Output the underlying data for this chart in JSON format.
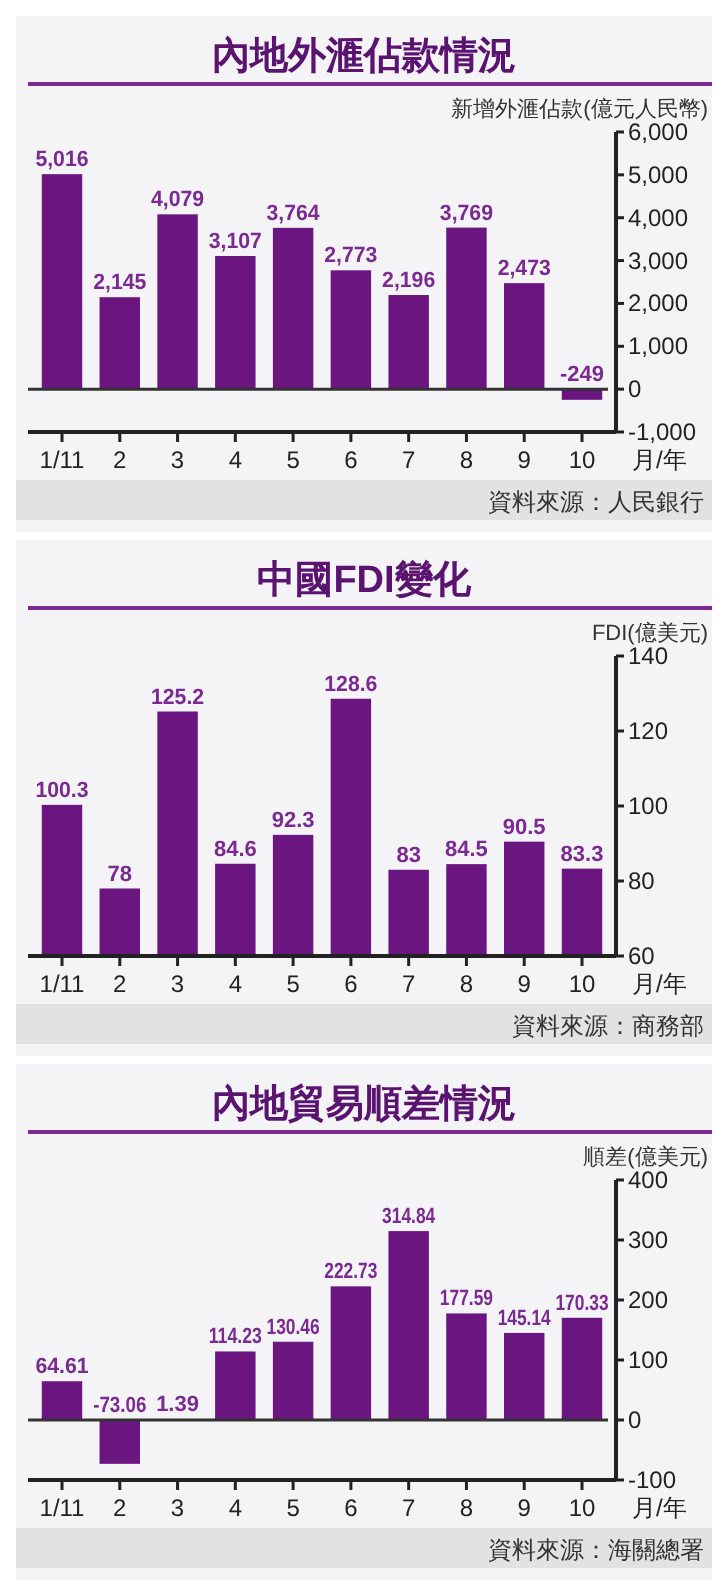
{
  "chart_data": [
    {
      "type": "bar",
      "title": "內地外滙佔款情況",
      "ylabel": "新增外滙佔款(億元人民幣)",
      "xlabel": "月/年",
      "categories": [
        "1/11",
        "2",
        "3",
        "4",
        "5",
        "6",
        "7",
        "8",
        "9",
        "10"
      ],
      "series": [
        {
          "color": "#6a1580",
          "values": [
            5016,
            2145,
            4079,
            3107,
            3764,
            2773,
            2196,
            3769,
            2473,
            -249
          ],
          "value_labels": [
            "5,016",
            "2,145",
            "4,079",
            "3,107",
            "3,764",
            "2,773",
            "2,196",
            "3,769",
            "2,473",
            "-249"
          ]
        }
      ],
      "ylim": [
        -1000,
        6000
      ],
      "yticks": [
        {
          "value": -1000,
          "label": "-1,000"
        },
        0,
        {
          "value": 1000,
          "label": "1,000"
        },
        {
          "value": 2000,
          "label": "2,000"
        },
        {
          "value": 3000,
          "label": "3,000"
        },
        {
          "value": 4000,
          "label": "4,000"
        },
        {
          "value": 5000,
          "label": "5,000"
        },
        {
          "value": 6000,
          "label": "6,000"
        }
      ],
      "ref_lines": [
        {
          "axis": "y",
          "value": 0,
          "color": "#333333"
        }
      ],
      "annotations": [
        "資料來源：人民銀行"
      ]
    },
    {
      "type": "bar",
      "title": "中國FDI變化",
      "ylabel": "FDI(億美元)",
      "xlabel": "月/年",
      "categories": [
        "1/11",
        "2",
        "3",
        "4",
        "5",
        "6",
        "7",
        "8",
        "9",
        "10"
      ],
      "series": [
        {
          "color": "#6a1580",
          "values": [
            100.3,
            78,
            125.2,
            84.6,
            92.3,
            128.6,
            83,
            84.5,
            90.5,
            83.3
          ]
        }
      ],
      "ylim": [
        60,
        140
      ],
      "yticks": [
        60,
        80,
        100,
        120,
        140
      ],
      "data_labels": true,
      "annotations": [
        "資料來源：商務部"
      ]
    },
    {
      "type": "bar",
      "title": "內地貿易順差情況",
      "ylabel": "順差(億美元)",
      "xlabel": "月/年",
      "categories": [
        "1/11",
        "2",
        "3",
        "4",
        "5",
        "6",
        "7",
        "8",
        "9",
        "10"
      ],
      "series": [
        {
          "color": "#6a1580",
          "values": [
            64.61,
            -73.06,
            1.39,
            114.23,
            130.46,
            222.73,
            314.84,
            177.59,
            145.14,
            170.33
          ]
        }
      ],
      "ylim": [
        -100,
        400
      ],
      "yticks": [
        -100,
        0,
        100,
        200,
        300,
        400
      ],
      "data_labels": true,
      "ref_lines": [
        {
          "axis": "y",
          "value": 0,
          "color": "#333333"
        }
      ],
      "annotations": [
        "資料來源：海關總署"
      ]
    }
  ]
}
